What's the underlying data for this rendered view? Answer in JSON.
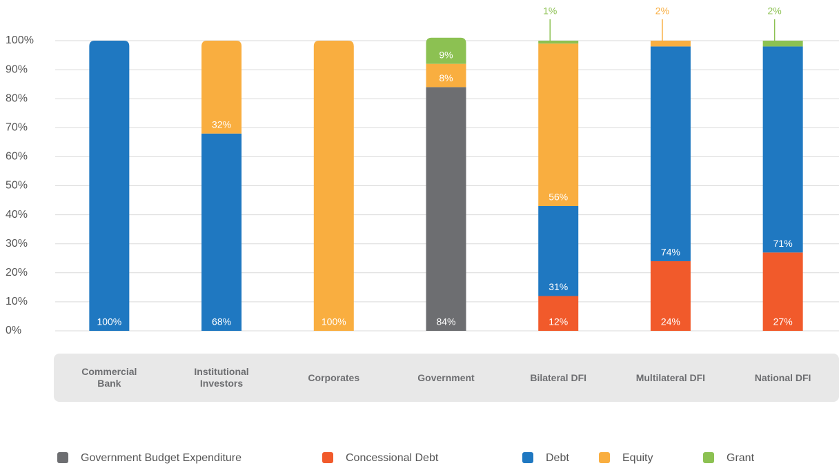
{
  "chart_data": {
    "type": "stacked_bar",
    "categories": [
      "Commercial Bank",
      "Institutional Investors",
      "Corporates",
      "Government",
      "Bilateral DFI",
      "Multilateral DFI",
      "National DFI"
    ],
    "series": [
      {
        "name": "Government Budget Expenditure",
        "color": "#6d6e71",
        "values": [
          null,
          null,
          null,
          84,
          null,
          null,
          null
        ],
        "value_labels": [
          null,
          null,
          null,
          "84%",
          null,
          null,
          null
        ]
      },
      {
        "name": "Concessional Debt",
        "color": "#f15a2b",
        "values": [
          null,
          null,
          null,
          null,
          12,
          24,
          27
        ],
        "value_labels": [
          null,
          null,
          null,
          null,
          "12%",
          "24%",
          "27%"
        ]
      },
      {
        "name": "Debt",
        "color": "#1f78c1",
        "values": [
          100,
          68,
          null,
          null,
          31,
          74,
          71
        ],
        "value_labels": [
          "100%",
          "68%",
          null,
          null,
          "31%",
          "74%",
          "71%"
        ]
      },
      {
        "name": "Equity",
        "color": "#f9ae40",
        "values": [
          null,
          32,
          100,
          8,
          56,
          2,
          null
        ],
        "value_labels": [
          null,
          "32%",
          "100%",
          "8%",
          "56%",
          "2%",
          null
        ]
      },
      {
        "name": "Grant",
        "color": "#8cc152",
        "values": [
          null,
          null,
          null,
          9,
          1,
          null,
          2
        ],
        "value_labels": [
          null,
          null,
          null,
          "9%",
          "1%",
          null,
          "2%"
        ]
      }
    ],
    "ylim": [
      0,
      100
    ],
    "yticks": [
      {
        "value": 0,
        "label": "0%"
      },
      {
        "value": 10,
        "label": "10%"
      },
      {
        "value": 20,
        "label": "20%"
      },
      {
        "value": 30,
        "label": "30%"
      },
      {
        "value": 40,
        "label": "40%"
      },
      {
        "value": 50,
        "label": "50%"
      },
      {
        "value": 60,
        "label": "60%"
      },
      {
        "value": 70,
        "label": "70%"
      },
      {
        "value": 80,
        "label": "80%"
      },
      {
        "value": 90,
        "label": "90%"
      },
      {
        "value": 100,
        "label": "100%"
      }
    ],
    "grid": true,
    "legend": "bottom"
  }
}
